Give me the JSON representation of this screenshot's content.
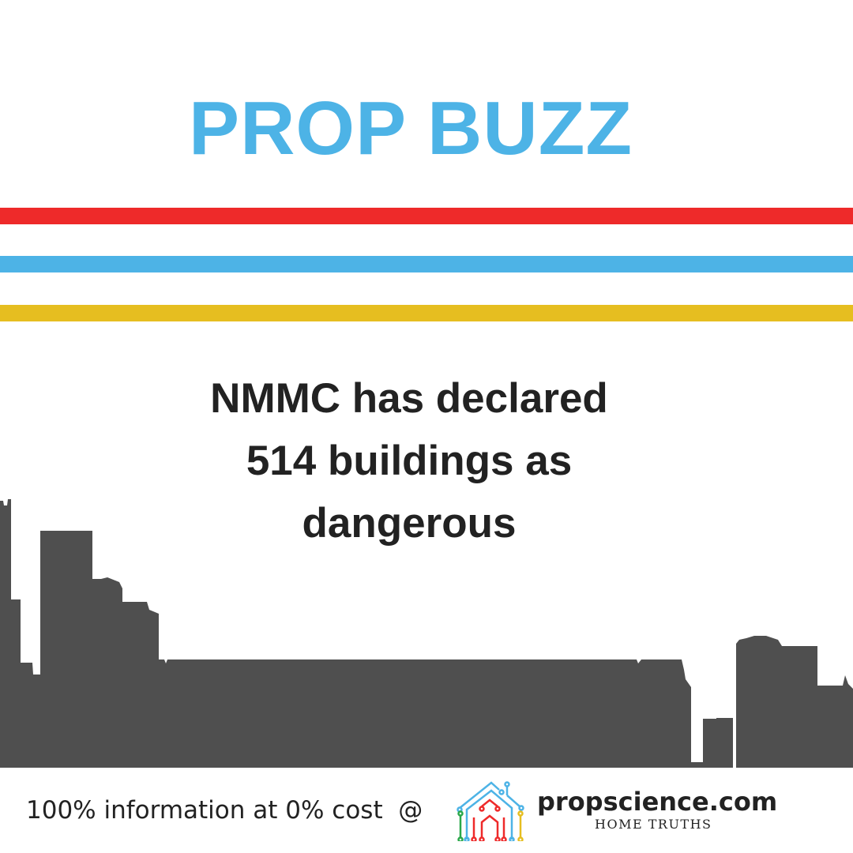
{
  "header": {
    "title": "PROP BUZZ"
  },
  "stripes": {
    "colors": [
      "#ee2a2a",
      "#4db3e6",
      "#e6be20"
    ]
  },
  "headline": {
    "lines": [
      "NMMC has declared",
      "514 buildings as",
      "dangerous"
    ]
  },
  "skyline": {
    "color": "#4f4f4f"
  },
  "footer": {
    "text": "100% information at 0% cost  @",
    "brand": "propscience.com",
    "tagline": "HOME TRUTHS"
  }
}
